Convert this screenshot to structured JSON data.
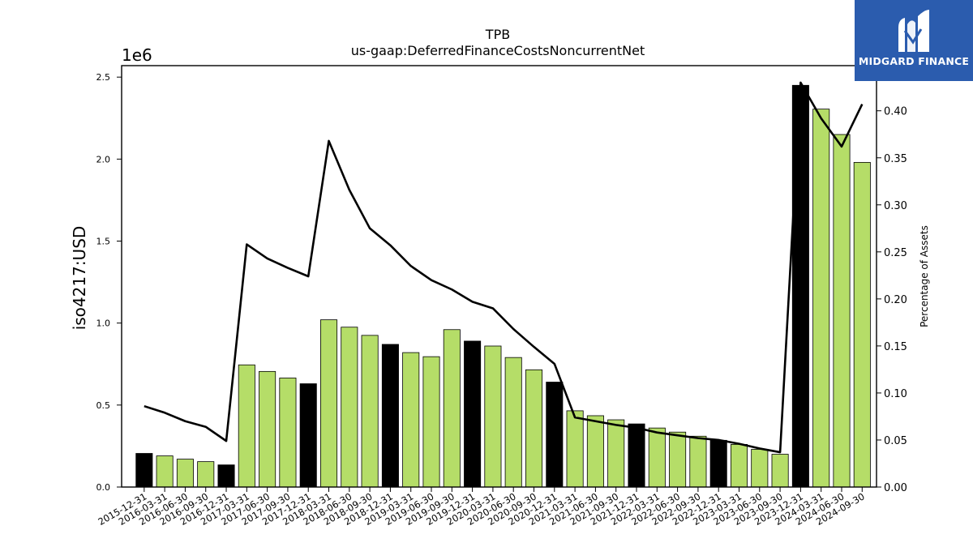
{
  "chart_data": {
    "type": "bar",
    "title": "TPB",
    "subtitle": "us-gaap:DeferredFinanceCostsNoncurrentNet",
    "ylabel": "iso4217:USD",
    "y2label": "Percentage of Assets",
    "y_offset_label": "1e6",
    "ylim": [
      0,
      2.57
    ],
    "y2lim": [
      0,
      0.448
    ],
    "yticks": [
      "0.0",
      "0.5",
      "1.0",
      "1.5",
      "2.0",
      "2.5"
    ],
    "y2ticks": [
      "0.00",
      "0.05",
      "0.10",
      "0.15",
      "0.20",
      "0.25",
      "0.30",
      "0.35",
      "0.40"
    ],
    "categories": [
      "2015-12-31",
      "2016-03-31",
      "2016-06-30",
      "2016-09-30",
      "2016-12-31",
      "2017-03-31",
      "2017-06-30",
      "2017-09-30",
      "2017-12-31",
      "2018-03-31",
      "2018-06-30",
      "2018-09-30",
      "2018-12-31",
      "2019-03-31",
      "2019-06-30",
      "2019-09-30",
      "2019-12-31",
      "2020-03-31",
      "2020-06-30",
      "2020-09-30",
      "2020-12-31",
      "2021-03-31",
      "2021-06-30",
      "2021-09-30",
      "2021-12-31",
      "2022-03-31",
      "2022-06-30",
      "2022-09-30",
      "2022-12-31",
      "2023-03-31",
      "2023-06-30",
      "2023-09-30",
      "2023-12-31",
      "2024-03-31",
      "2024-06-30",
      "2024-09-30"
    ],
    "series": [
      {
        "type": "bar",
        "axis": "left",
        "values": [
          0.205,
          0.19,
          0.17,
          0.155,
          0.135,
          0.745,
          0.705,
          0.665,
          0.63,
          1.02,
          0.975,
          0.925,
          0.87,
          0.82,
          0.795,
          0.96,
          0.89,
          0.86,
          0.79,
          0.715,
          0.64,
          0.465,
          0.435,
          0.41,
          0.385,
          0.36,
          0.335,
          0.31,
          0.285,
          0.26,
          0.23,
          0.2,
          2.45,
          2.305,
          2.15,
          1.98
        ],
        "year_end_color": "#000000",
        "color": "#b5dd68"
      },
      {
        "type": "line",
        "axis": "right",
        "values": [
          0.086,
          0.079,
          0.07,
          0.064,
          0.049,
          0.258,
          0.243,
          0.233,
          0.224,
          0.368,
          0.316,
          0.275,
          0.257,
          0.235,
          0.22,
          0.21,
          0.197,
          0.19,
          0.168,
          0.149,
          0.131,
          0.074,
          0.07,
          0.066,
          0.063,
          0.058,
          0.055,
          0.052,
          0.05,
          0.046,
          0.041,
          0.037,
          0.43,
          0.392,
          0.362,
          0.407
        ],
        "color": "#000000"
      }
    ]
  },
  "logo": {
    "text": "MIDGARD FINANCE",
    "bg_color": "#2b5cae"
  }
}
